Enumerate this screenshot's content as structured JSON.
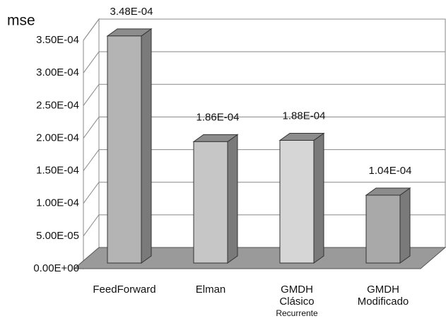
{
  "chart_data": {
    "type": "bar3d",
    "y_label": "mse",
    "categories": [
      "FeedForward",
      "Elman",
      "GMDH Clásico Recurrente",
      "GMDH Modificado"
    ],
    "values": [
      0.000348,
      0.000186,
      0.000188,
      0.000104
    ],
    "value_labels": [
      "3.48E-04",
      "1.86E-04",
      "1.88E-04",
      "1.04E-04"
    ],
    "colors": [
      "#b4b4b4",
      "#c6c6c6",
      "#d6d6d6",
      "#a9a9a9"
    ],
    "ylim": [
      0,
      0.00035
    ],
    "yticks": [
      {
        "value": 0,
        "label": "0.00E+00"
      },
      {
        "value": 5e-05,
        "label": "5.00E-05"
      },
      {
        "value": 0.0001,
        "label": "1.00E-04"
      },
      {
        "value": 0.00015,
        "label": "1.50E-04"
      },
      {
        "value": 0.0002,
        "label": "2.00E-04"
      },
      {
        "value": 0.00025,
        "label": "2.50E-04"
      },
      {
        "value": 0.0003,
        "label": "3.00E-04"
      },
      {
        "value": 0.00035,
        "label": "3.50E-04"
      }
    ],
    "grid": true
  }
}
